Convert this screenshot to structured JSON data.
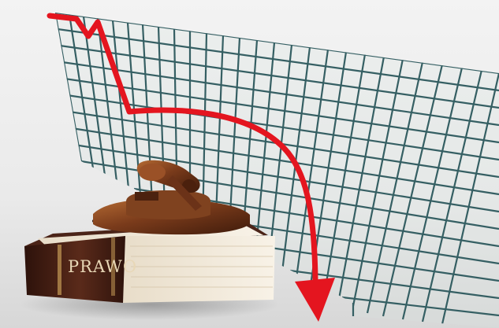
{
  "book": {
    "title": "PRAWO"
  },
  "scene": {
    "objects": [
      "gavel",
      "law-book",
      "grid-board",
      "declining-arrow"
    ],
    "colors": {
      "background_top": "#f1f1f1",
      "background_bottom": "#d9d9d9",
      "grid": "#355f63",
      "arrow": "#e4151f",
      "book_cover": "#4b2418",
      "book_pages": "#f1e8d6",
      "wood": "#7a3f1d"
    }
  }
}
